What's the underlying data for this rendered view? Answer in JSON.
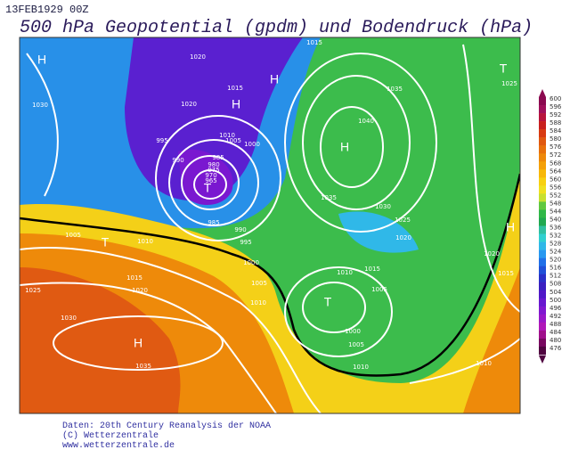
{
  "header": {
    "date": "13FEB1929 00Z",
    "title": "500 hPa Geopotential (gpdm) und Bodendruck (hPa)"
  },
  "colorbar": {
    "labels": [
      600,
      596,
      592,
      588,
      584,
      580,
      576,
      572,
      568,
      564,
      560,
      556,
      552,
      548,
      544,
      540,
      536,
      532,
      528,
      524,
      520,
      516,
      512,
      508,
      504,
      500,
      496,
      492,
      488,
      484,
      480,
      476
    ],
    "colors": [
      "#8b0a50",
      "#a0105a",
      "#b8143c",
      "#c8201e",
      "#d83a12",
      "#e05810",
      "#e8700c",
      "#ee880a",
      "#f4a008",
      "#f8b808",
      "#f8d010",
      "#f0e020",
      "#c8e030",
      "#60c840",
      "#30b848",
      "#20a850",
      "#30c0a0",
      "#30d0d0",
      "#30b8e8",
      "#2898f0",
      "#2070e8",
      "#2050d8",
      "#2a30c8",
      "#3a20c0",
      "#5018c8",
      "#6818d0",
      "#8018d0",
      "#9818c8",
      "#b018b8",
      "#a0108c",
      "#780860",
      "#500440"
    ]
  },
  "map": {
    "pressure_systems": [
      "H",
      "T",
      "H",
      "H",
      "H",
      "T",
      "T",
      "H",
      "H",
      "T"
    ],
    "isobar_labels": [
      "1030",
      "1020",
      "1015",
      "1020",
      "1010",
      "1005",
      "1000",
      "995",
      "990",
      "985",
      "980",
      "975",
      "970",
      "965",
      "985",
      "990",
      "995",
      "1000",
      "1005",
      "1010",
      "1015",
      "1020",
      "1025",
      "1005",
      "1010",
      "1030",
      "1035",
      "1035",
      "1040",
      "1035",
      "1030",
      "1025",
      "1020",
      "1015",
      "1010",
      "1005",
      "1000",
      "1005",
      "1010",
      "1020",
      "1015",
      "1010",
      "1015",
      "1025"
    ]
  },
  "footer": {
    "lines": [
      "Daten: 20th Century Reanalysis der NOAA",
      "(C) Wetterzentrale",
      "www.wetterzentrale.de"
    ]
  }
}
